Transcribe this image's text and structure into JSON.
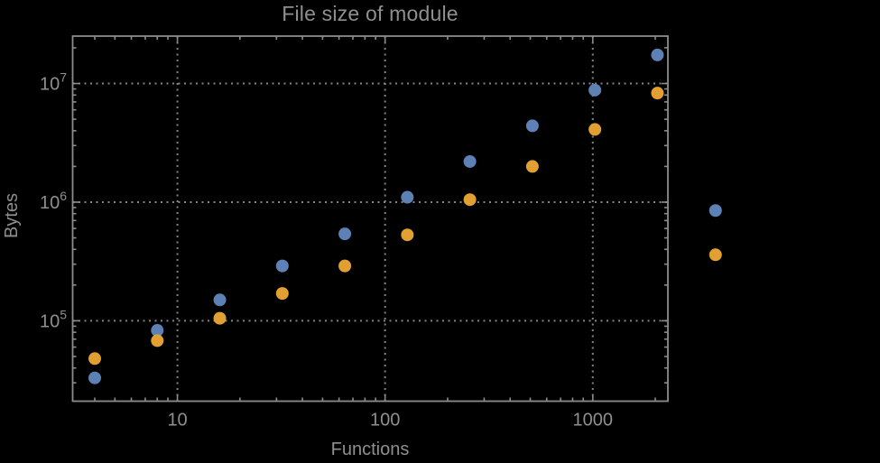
{
  "chart_data": {
    "type": "scatter",
    "title": "File size of module",
    "xlabel": "Functions",
    "ylabel": "Bytes",
    "xscale": "log",
    "yscale": "log",
    "xlim": [
      3.13,
      2300
    ],
    "ylim": [
      21000,
      25100000
    ],
    "grid": "dotted-at-major-ticks",
    "legend": "none",
    "x_ticks": [
      {
        "value": 10,
        "label": "10"
      },
      {
        "value": 100,
        "label": "100"
      },
      {
        "value": 1000,
        "label": "1000"
      }
    ],
    "y_ticks": [
      {
        "value": 100000,
        "mantissa": "10",
        "exponent": "5"
      },
      {
        "value": 1000000,
        "mantissa": "10",
        "exponent": "6"
      },
      {
        "value": 10000000,
        "mantissa": "10",
        "exponent": "7"
      }
    ],
    "x": [
      4,
      8,
      16,
      32,
      64,
      128,
      256,
      512,
      1024,
      2048,
      3900
    ],
    "series": [
      {
        "name": "series-blue",
        "color": "#5e81b5",
        "values": [
          33000,
          83000,
          150000,
          290000,
          540000,
          1100000,
          2200000,
          4400000,
          8800000,
          17400000,
          850000
        ]
      },
      {
        "name": "series-orange",
        "color": "#e2a033",
        "values": [
          48000,
          68000,
          105000,
          170000,
          290000,
          530000,
          1050000,
          2000000,
          4100000,
          8300000,
          360000
        ]
      }
    ],
    "marker": {
      "shape": "circle",
      "radius_px": 7
    },
    "colors": {
      "background": "#000000",
      "frame": "#8c8c8c",
      "grid": "#848484",
      "text": "#8f8f8f"
    }
  }
}
